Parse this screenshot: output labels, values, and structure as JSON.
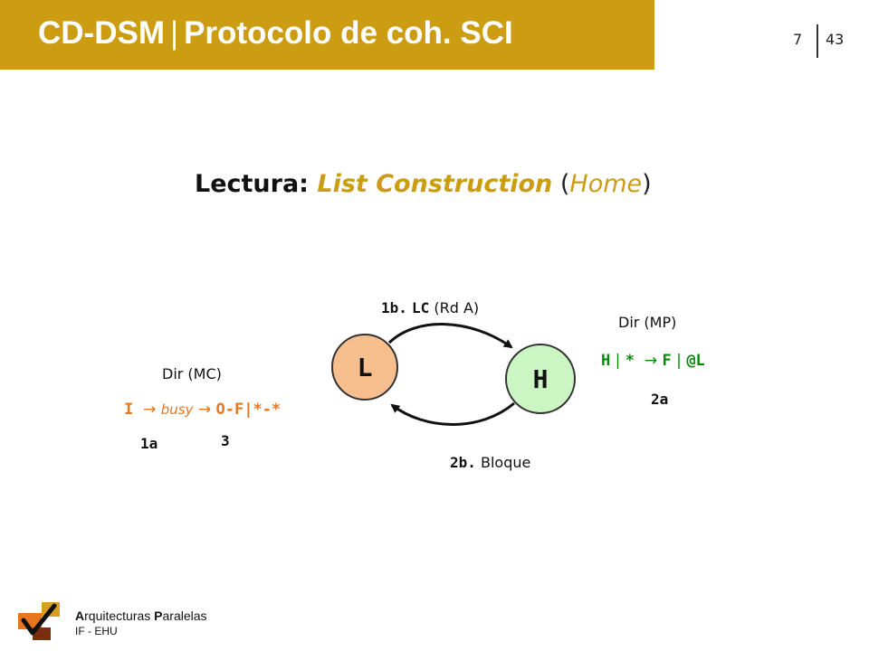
{
  "header": {
    "title_left": "CD-DSM",
    "separator": "|",
    "title_right": "Protocolo de coh. SCI",
    "page_current": "7",
    "page_total": "43"
  },
  "slide_title": {
    "lead": "Lectura: ",
    "emphasis": "List Construction",
    "paren_open": " (",
    "home": "Home",
    "paren_close": ")"
  },
  "diagram": {
    "node_l": "L",
    "node_h": "H",
    "msg_1b": {
      "step": "1b.",
      "code": "LC",
      "detail": "(Rd A)"
    },
    "msg_2b": {
      "step": "2b.",
      "detail": "Bloque"
    },
    "dir_mc": {
      "label": "Dir (MC)",
      "state_i": "I",
      "arrow1": "→",
      "busy": "busy",
      "arrow2": "→",
      "state_o": "O-F|*-*",
      "step_1a": "1a",
      "step_3": "3"
    },
    "dir_mp": {
      "label": "Dir (MP)",
      "state_h": "H",
      "bar1": "|",
      "star": "*",
      "arrow": "→",
      "state_f": "F",
      "bar2": "|",
      "at_l": "@L",
      "step_2a": "2a"
    }
  },
  "footer": {
    "title_a1": "A",
    "title_a2": "rquitecturas ",
    "title_p1": "P",
    "title_p2": "aralelas",
    "subtitle": "IF - EHU"
  },
  "colors": {
    "header_gold": "#cc9d12",
    "orange": "#e8761e",
    "green": "#0a8a0a",
    "node_l_fill": "#f8bf8e",
    "node_h_fill": "#ccf5c4",
    "logo_orange": "#e8761e",
    "logo_brown": "#7a2e0e"
  }
}
